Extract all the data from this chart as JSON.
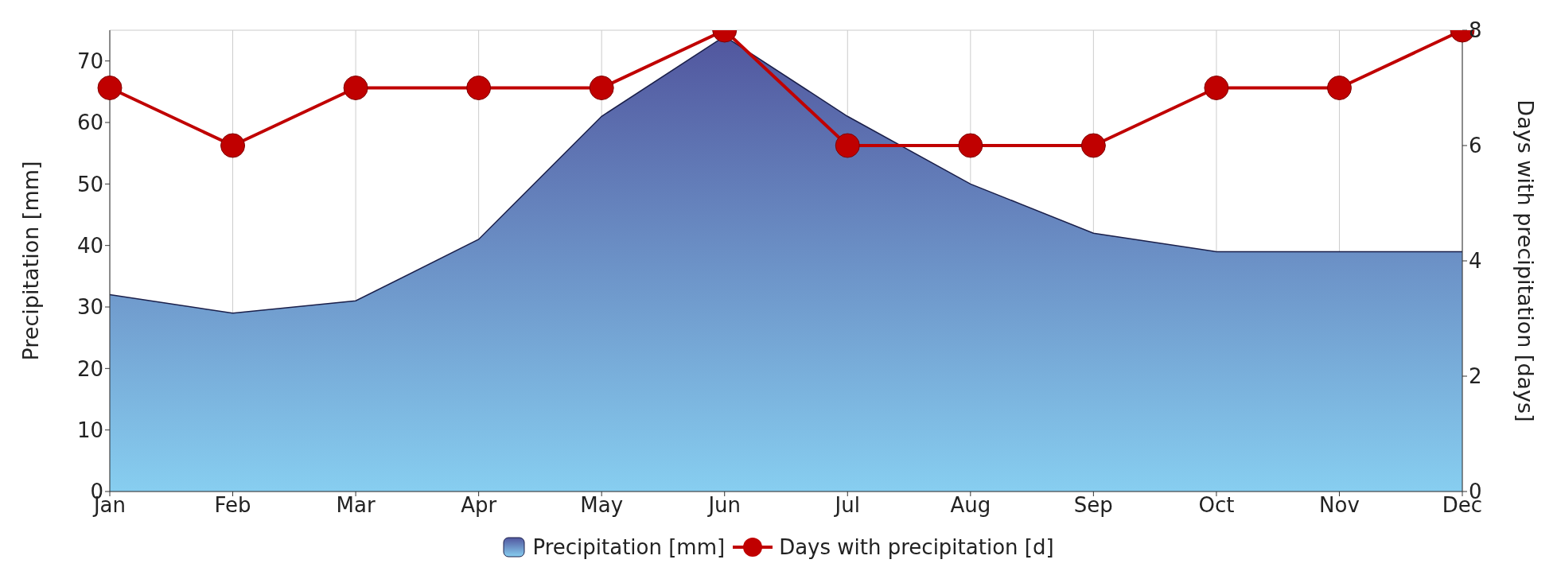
{
  "chart_data": {
    "type": "area",
    "categories": [
      "Jan",
      "Feb",
      "Mar",
      "Apr",
      "May",
      "Jun",
      "Jul",
      "Aug",
      "Sep",
      "Oct",
      "Nov",
      "Dec"
    ],
    "series": [
      {
        "name": "Precipitation [mm]",
        "color": "#5a6aac",
        "values": [
          32,
          29,
          31,
          41,
          61,
          74,
          61,
          50,
          42,
          39,
          39,
          39
        ]
      },
      {
        "name": "Days with precipitation [d]",
        "type": "line",
        "axis": "y2",
        "color": "#c00000",
        "marker": "circle",
        "values": [
          7,
          6,
          7,
          7,
          7,
          8,
          6,
          6,
          6,
          7,
          7,
          8
        ]
      }
    ],
    "ylabel": "Precipitation [mm]",
    "y2label": "Days with precipitation [days]",
    "ylim": [
      0,
      75
    ],
    "yticks": [
      0,
      10,
      20,
      30,
      40,
      50,
      60,
      70
    ],
    "y2lim": [
      0,
      8
    ],
    "y2ticks": [
      0,
      2,
      4,
      6,
      8
    ],
    "grid": true,
    "legend": "bottom",
    "line_style": "solid"
  }
}
